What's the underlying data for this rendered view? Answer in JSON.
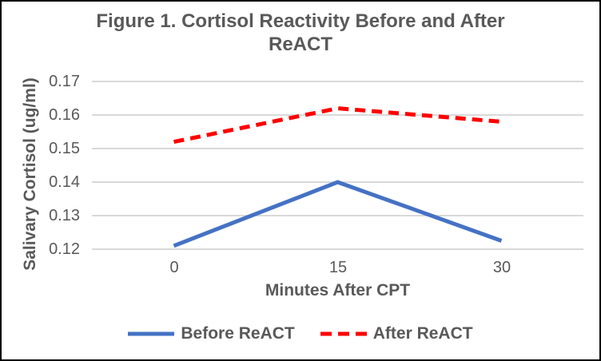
{
  "chart_data": {
    "type": "line",
    "title": "Figure 1. Cortisol Reactivity Before and After ReACT",
    "title_lines": [
      "Figure 1. Cortisol Reactivity Before and After",
      "ReACT"
    ],
    "xlabel": "Minutes After CPT",
    "ylabel": "Salivary Cortisol (ug/ml)",
    "categories": [
      "0",
      "15",
      "30"
    ],
    "x": [
      0,
      15,
      30
    ],
    "series": [
      {
        "name": "Before ReACT",
        "values": [
          0.121,
          0.14,
          0.1225
        ],
        "color": "#4472C4",
        "line_style": "solid"
      },
      {
        "name": "After ReACT",
        "values": [
          0.152,
          0.162,
          0.158
        ],
        "color": "#FF0000",
        "line_style": "dashed"
      }
    ],
    "ylim": [
      0.12,
      0.17
    ],
    "ytick_step": 0.01,
    "ytick_labels": [
      "0.17",
      "0.16",
      "0.15",
      "0.14",
      "0.13",
      "0.12"
    ],
    "grid": true,
    "legend_position": "bottom"
  },
  "colors": {
    "text": "#595959",
    "gridline": "#D9D9D9",
    "border": "#000000",
    "series_before": "#4472C4",
    "series_after": "#FF0000"
  }
}
